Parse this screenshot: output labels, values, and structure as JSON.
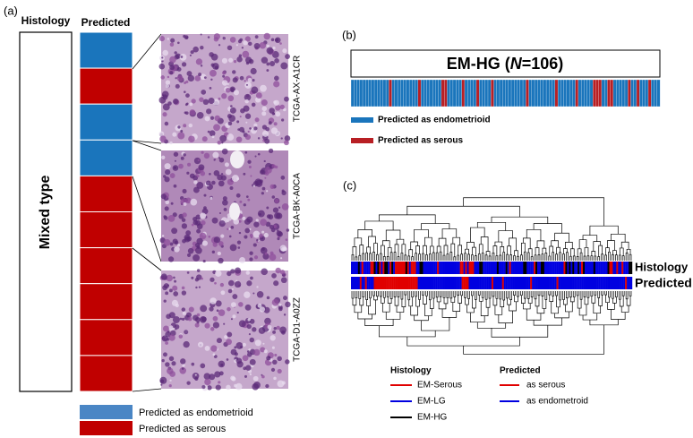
{
  "panel_a": {
    "label": "(a)",
    "histology_header": "Histology",
    "predicted_header": "Predicted",
    "histology_class": "Mixed type",
    "cases": [
      "TCGA-AX-A1CR",
      "TCGA-BK-A0CA",
      "TCGA-D1-A0ZZ"
    ],
    "legend": [
      "Predicted as endometrioid",
      "Predicted as serous"
    ]
  },
  "panel_b": {
    "label": "(b)",
    "title_prefix": "EM-HG (",
    "title_italic": "N",
    "title_suffix": "=106)",
    "legend": [
      "Predicted as endometrioid",
      "Predicted as serous"
    ]
  },
  "panel_c": {
    "label": "(c)",
    "row_labels": [
      "Histology",
      "Predicted"
    ],
    "legend_histology": {
      "heading": "Histology",
      "items": [
        "EM-Serous",
        "EM-LG",
        "EM-HG"
      ]
    },
    "legend_predicted": {
      "heading": "Predicted",
      "items": [
        "as serous",
        "as endometroid"
      ]
    }
  }
}
